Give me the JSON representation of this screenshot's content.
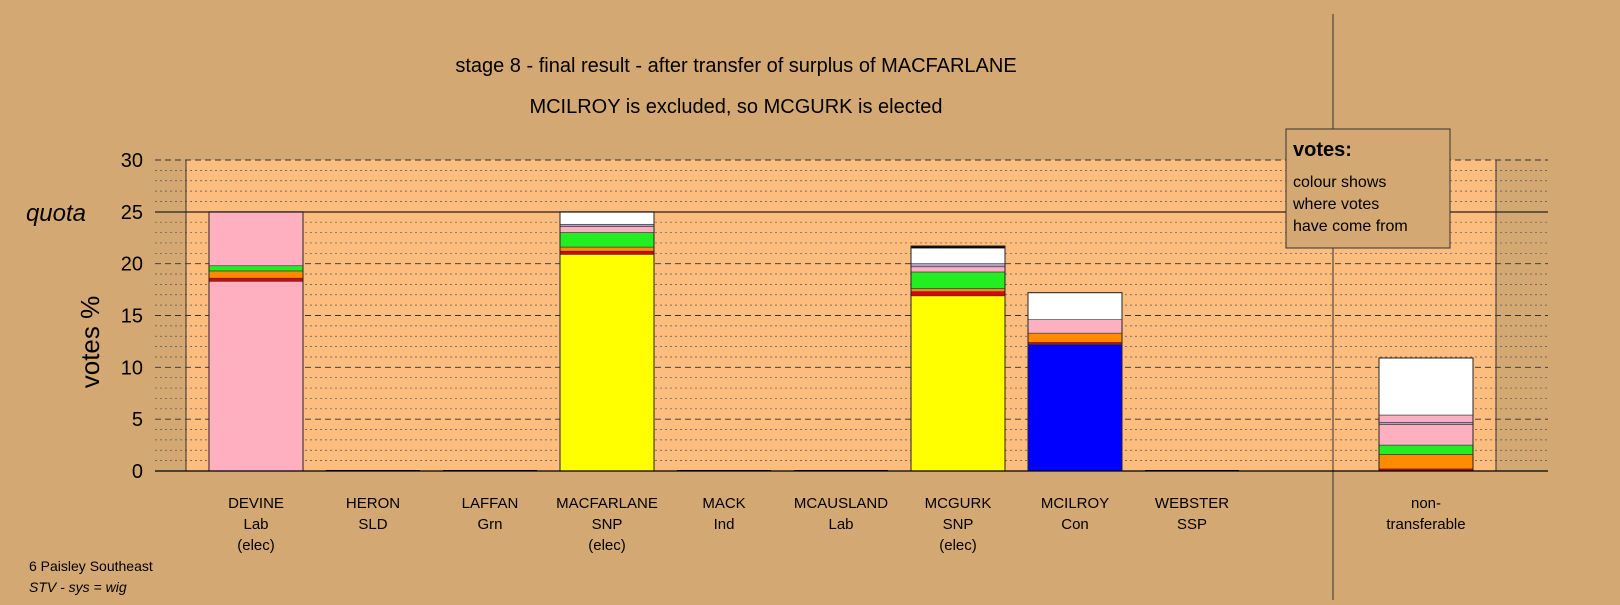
{
  "chart_data": {
    "type": "bar",
    "stacked": true,
    "title": "stage 8 - final result - after transfer of surplus of MACFARLANE",
    "subtitle": "MCILROY is excluded, so MCGURK is elected",
    "ylabel": "votes %",
    "ylim": [
      0,
      30
    ],
    "yticks": [
      "0",
      "5",
      "10",
      "15",
      "20",
      "25",
      "30"
    ],
    "quota": {
      "label": "quota",
      "value": 25
    },
    "grid": "dashed major, dotted minor",
    "legend": {
      "title": "votes:",
      "lines": [
        "colour shows",
        "where votes",
        "have come from"
      ],
      "placement": "top-right"
    },
    "colors": {
      "Lab": "#ffb0c0",
      "SNP": "#ffff00",
      "Con": "#0000ff",
      "Red": "#e00000",
      "Orange": "#ff8c00",
      "Green": "#22ee22",
      "Pink": "#ffb0c0",
      "Purple": "#b0a0c8",
      "White": "#ffffff",
      "Black": "#000000"
    },
    "bars": [
      {
        "name": "DEVINE",
        "party": "Lab",
        "status": "(elec)",
        "segments": [
          {
            "color": "Lab",
            "value": 18.3
          },
          {
            "color": "Red",
            "value": 0.3
          },
          {
            "color": "Orange",
            "value": 0.7
          },
          {
            "color": "Green",
            "value": 0.5
          },
          {
            "color": "Pink",
            "value": 5.2
          }
        ]
      },
      {
        "name": "HERON",
        "party": "SLD",
        "status": "",
        "segments": []
      },
      {
        "name": "LAFFAN",
        "party": "Grn",
        "status": "",
        "segments": []
      },
      {
        "name": "MACFARLANE",
        "party": "SNP",
        "status": "(elec)",
        "segments": [
          {
            "color": "SNP",
            "value": 20.9
          },
          {
            "color": "Red",
            "value": 0.3
          },
          {
            "color": "Orange",
            "value": 0.4
          },
          {
            "color": "Green",
            "value": 1.4
          },
          {
            "color": "Pink",
            "value": 0.6
          },
          {
            "color": "Purple",
            "value": 0.2
          },
          {
            "color": "White",
            "value": 1.2
          }
        ]
      },
      {
        "name": "MACK",
        "party": "Ind",
        "status": "",
        "segments": []
      },
      {
        "name": "MCAUSLAND",
        "party": "Lab",
        "status": "",
        "segments": []
      },
      {
        "name": "MCGURK",
        "party": "SNP",
        "status": "(elec)",
        "segments": [
          {
            "color": "SNP",
            "value": 16.9
          },
          {
            "color": "Red",
            "value": 0.4
          },
          {
            "color": "Orange",
            "value": 0.3
          },
          {
            "color": "Green",
            "value": 1.6
          },
          {
            "color": "Pink",
            "value": 0.5
          },
          {
            "color": "Purple",
            "value": 0.3
          },
          {
            "color": "White",
            "value": 1.5
          },
          {
            "color": "Black",
            "value": 0.2
          }
        ]
      },
      {
        "name": "MCILROY",
        "party": "Con",
        "status": "",
        "segments": [
          {
            "color": "Con",
            "value": 12.2
          },
          {
            "color": "Red",
            "value": 0.2
          },
          {
            "color": "Orange",
            "value": 0.9
          },
          {
            "color": "Pink",
            "value": 1.3
          },
          {
            "color": "White",
            "value": 2.6
          }
        ]
      },
      {
        "name": "WEBSTER",
        "party": "SSP",
        "status": "",
        "segments": []
      },
      {
        "name": "non-",
        "party": "transferable",
        "status": "",
        "segments": [
          {
            "color": "Red",
            "value": 0.2
          },
          {
            "color": "Orange",
            "value": 1.4
          },
          {
            "color": "Green",
            "value": 0.9
          },
          {
            "color": "Pink",
            "value": 2.0
          },
          {
            "color": "Purple",
            "value": 0.2
          },
          {
            "color": "Pink",
            "value": 0.7
          },
          {
            "color": "White",
            "value": 5.5
          }
        ]
      }
    ]
  },
  "footer": {
    "line1": "6 Paisley Southeast",
    "line2": "STV - sys = wig"
  }
}
